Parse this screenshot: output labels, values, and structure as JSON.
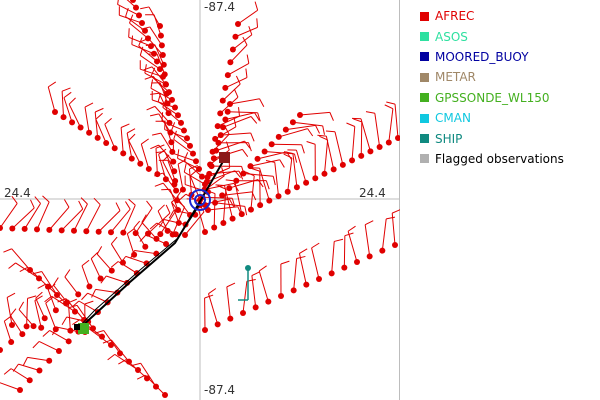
{
  "map": {
    "crosshair_labels": {
      "top": "-87.4",
      "bottom": "-87.4",
      "left": "24.4",
      "right": "24.4"
    }
  },
  "legend": {
    "items": [
      {
        "label": "AFREC",
        "color": "#e00000"
      },
      {
        "label": "ASOS",
        "color": "#2ee0a0"
      },
      {
        "label": "MOORED_BUOY",
        "color": "#0000a0"
      },
      {
        "label": "METAR",
        "color": "#a08868"
      },
      {
        "label": "GPSSONDE_WL150",
        "color": "#44b020"
      },
      {
        "label": "CMAN",
        "color": "#10c8e0"
      },
      {
        "label": "SHIP",
        "color": "#108a80"
      },
      {
        "label": "Flagged observations",
        "color": "#b0b0b0"
      }
    ]
  },
  "colors": {
    "afrec": "#e00000",
    "track": "#000000",
    "buoy": "#1a28d0",
    "ship": "#108a80",
    "gpssonde": "#44b020",
    "marker": "#8b1a1a",
    "grid": "#bdbdbd"
  }
}
